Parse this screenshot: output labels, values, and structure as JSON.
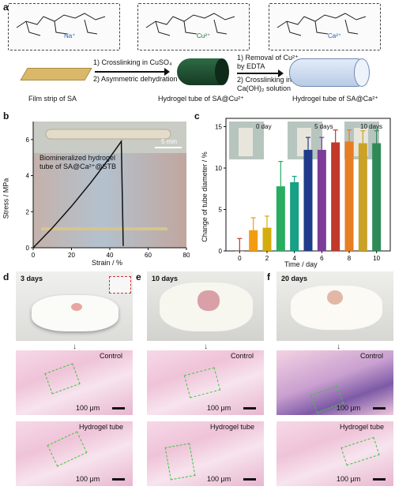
{
  "panel_a": {
    "label": "a",
    "ion_na": "Na⁺",
    "ion_cu": "Cu²⁺",
    "ion_ca": "Ca²⁺",
    "step1_line1": "1) Crosslinking in CuSO₄",
    "step1_line2": "2) Asymmetric dehydration",
    "step2_line1": "1) Removal of Cu²⁺",
    "step2_line2": "by EDTA",
    "step2_line3": "2) Crosslinking in",
    "step2_line4": "Ca(OH)₂ solution",
    "caption1": "Film strip of SA",
    "caption2": "Hydrogel tube of SA@Cu²⁺",
    "caption3": "Hydrogel tube of SA@Ca²⁺"
  },
  "panel_b": {
    "label": "b",
    "scalebar": "5 mm",
    "annotation_line1": "Biomineralized hydrogel",
    "annotation_line2": "tube of SA@Ca²⁺@STB",
    "ylabel": "Stress / MPa",
    "xlabel": "Strain / %",
    "yticks": [
      "0",
      "2",
      "4",
      "6"
    ],
    "xticks": [
      "0",
      "20",
      "40",
      "60",
      "80"
    ]
  },
  "panel_c": {
    "label": "c",
    "ylabel": "Change of tube diameter / %",
    "xlabel": "Time / day",
    "inset_labels": [
      "0 day",
      "5 days",
      "10 days"
    ]
  },
  "chart_data": [
    {
      "type": "line",
      "panel": "b",
      "xlabel": "Strain / %",
      "ylabel": "Stress / MPa",
      "xlim": [
        0,
        80
      ],
      "ylim": [
        0,
        7
      ],
      "series": [
        {
          "x": [
            0,
            10,
            20,
            30,
            40,
            46,
            47
          ],
          "y": [
            0,
            1.1,
            2.3,
            3.6,
            5.0,
            5.9,
            0.1
          ]
        }
      ]
    },
    {
      "type": "bar",
      "panel": "c",
      "xlabel": "Time / day",
      "ylabel": "Change of tube diameter / %",
      "xlim": [
        -1,
        11
      ],
      "ylim": [
        0,
        16
      ],
      "xticks": [
        0,
        2,
        4,
        6,
        8,
        10
      ],
      "yticks": [
        0,
        5,
        10,
        15
      ],
      "x": [
        0,
        1,
        2,
        3,
        4,
        5,
        6,
        7,
        8,
        9,
        10
      ],
      "values": [
        0,
        2.5,
        2.8,
        7.8,
        8.3,
        12.2,
        12.2,
        13.1,
        13.2,
        13.0,
        13.0
      ],
      "errors": [
        1.5,
        1.5,
        1.4,
        3.0,
        0.7,
        1.5,
        1.5,
        1.5,
        1.4,
        1.5,
        1.5
      ],
      "colors": [
        "#c0392b",
        "#f39c12",
        "#d4ac0d",
        "#27ae60",
        "#16a085",
        "#1f3b8a",
        "#7d3c98",
        "#c0392b",
        "#e67e22",
        "#c9a227",
        "#2e8b57"
      ]
    }
  ],
  "panel_d": {
    "label": "d",
    "time": "3 days",
    "control": "Control",
    "tube": "Hydrogel tube",
    "scale": "100 μm"
  },
  "panel_e": {
    "label": "e",
    "time": "10 days",
    "control": "Control",
    "tube": "Hydrogel tube",
    "scale": "100 μm"
  },
  "panel_f": {
    "label": "f",
    "time": "20 days",
    "control": "Control",
    "tube": "Hydrogel tube",
    "scale": "100 μm"
  },
  "colors": {
    "cu_tube": "#1f4a2e",
    "ca_tube": "#c9d9ee",
    "film": "#d9b86a",
    "histo_pink": "#eec5d8"
  },
  "icons": {
    "arrow": "arrow-down-icon"
  }
}
